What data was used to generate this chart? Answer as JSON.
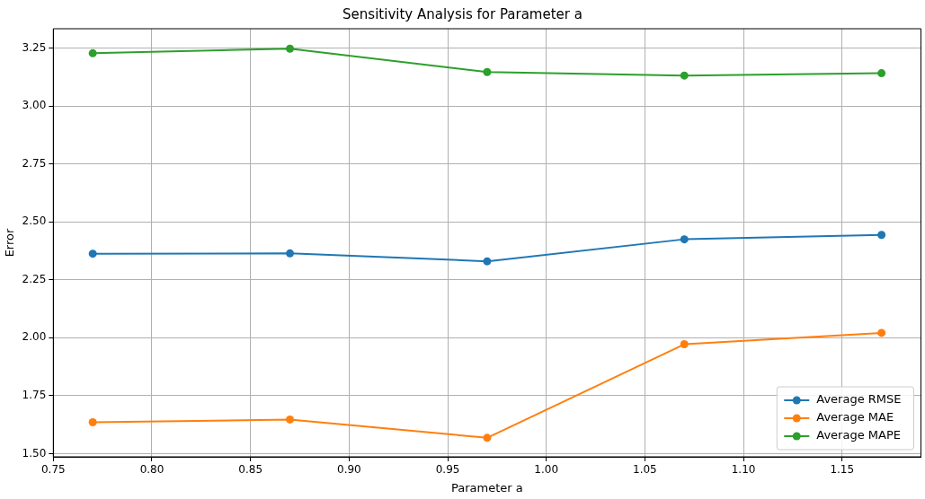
{
  "chart_data": {
    "type": "line",
    "title": "Sensitivity Analysis for Parameter a",
    "xlabel": "Parameter a",
    "ylabel": "Error",
    "x": [
      0.77,
      0.87,
      0.97,
      1.07,
      1.17
    ],
    "series": [
      {
        "name": "Average RMSE",
        "color": "#1f77b4",
        "values": [
          2.363,
          2.364,
          2.33,
          2.425,
          2.444
        ]
      },
      {
        "name": "Average MAE",
        "color": "#ff7f0e",
        "values": [
          1.635,
          1.647,
          1.568,
          1.972,
          2.021
        ]
      },
      {
        "name": "Average MAPE",
        "color": "#2ca02c",
        "values": [
          3.228,
          3.248,
          3.147,
          3.132,
          3.142
        ]
      }
    ],
    "xlim": [
      0.75,
      1.19
    ],
    "ylim": [
      1.486,
      3.334
    ],
    "xticks": [
      {
        "value": 0.75,
        "label": "0.75"
      },
      {
        "value": 0.8,
        "label": "0.80"
      },
      {
        "value": 0.85,
        "label": "0.85"
      },
      {
        "value": 0.9,
        "label": "0.90"
      },
      {
        "value": 0.95,
        "label": "0.95"
      },
      {
        "value": 1.0,
        "label": "1.00"
      },
      {
        "value": 1.05,
        "label": "1.05"
      },
      {
        "value": 1.1,
        "label": "1.10"
      },
      {
        "value": 1.15,
        "label": "1.15"
      }
    ],
    "yticks": [
      {
        "value": 1.5,
        "label": "1.50"
      },
      {
        "value": 1.75,
        "label": "1.75"
      },
      {
        "value": 2.0,
        "label": "2.00"
      },
      {
        "value": 2.25,
        "label": "2.25"
      },
      {
        "value": 2.5,
        "label": "2.50"
      },
      {
        "value": 2.75,
        "label": "2.75"
      },
      {
        "value": 3.0,
        "label": "3.00"
      },
      {
        "value": 3.25,
        "label": "3.25"
      }
    ],
    "grid": true,
    "legend": "bottom right",
    "marker": "circle",
    "line_style": "solid"
  }
}
